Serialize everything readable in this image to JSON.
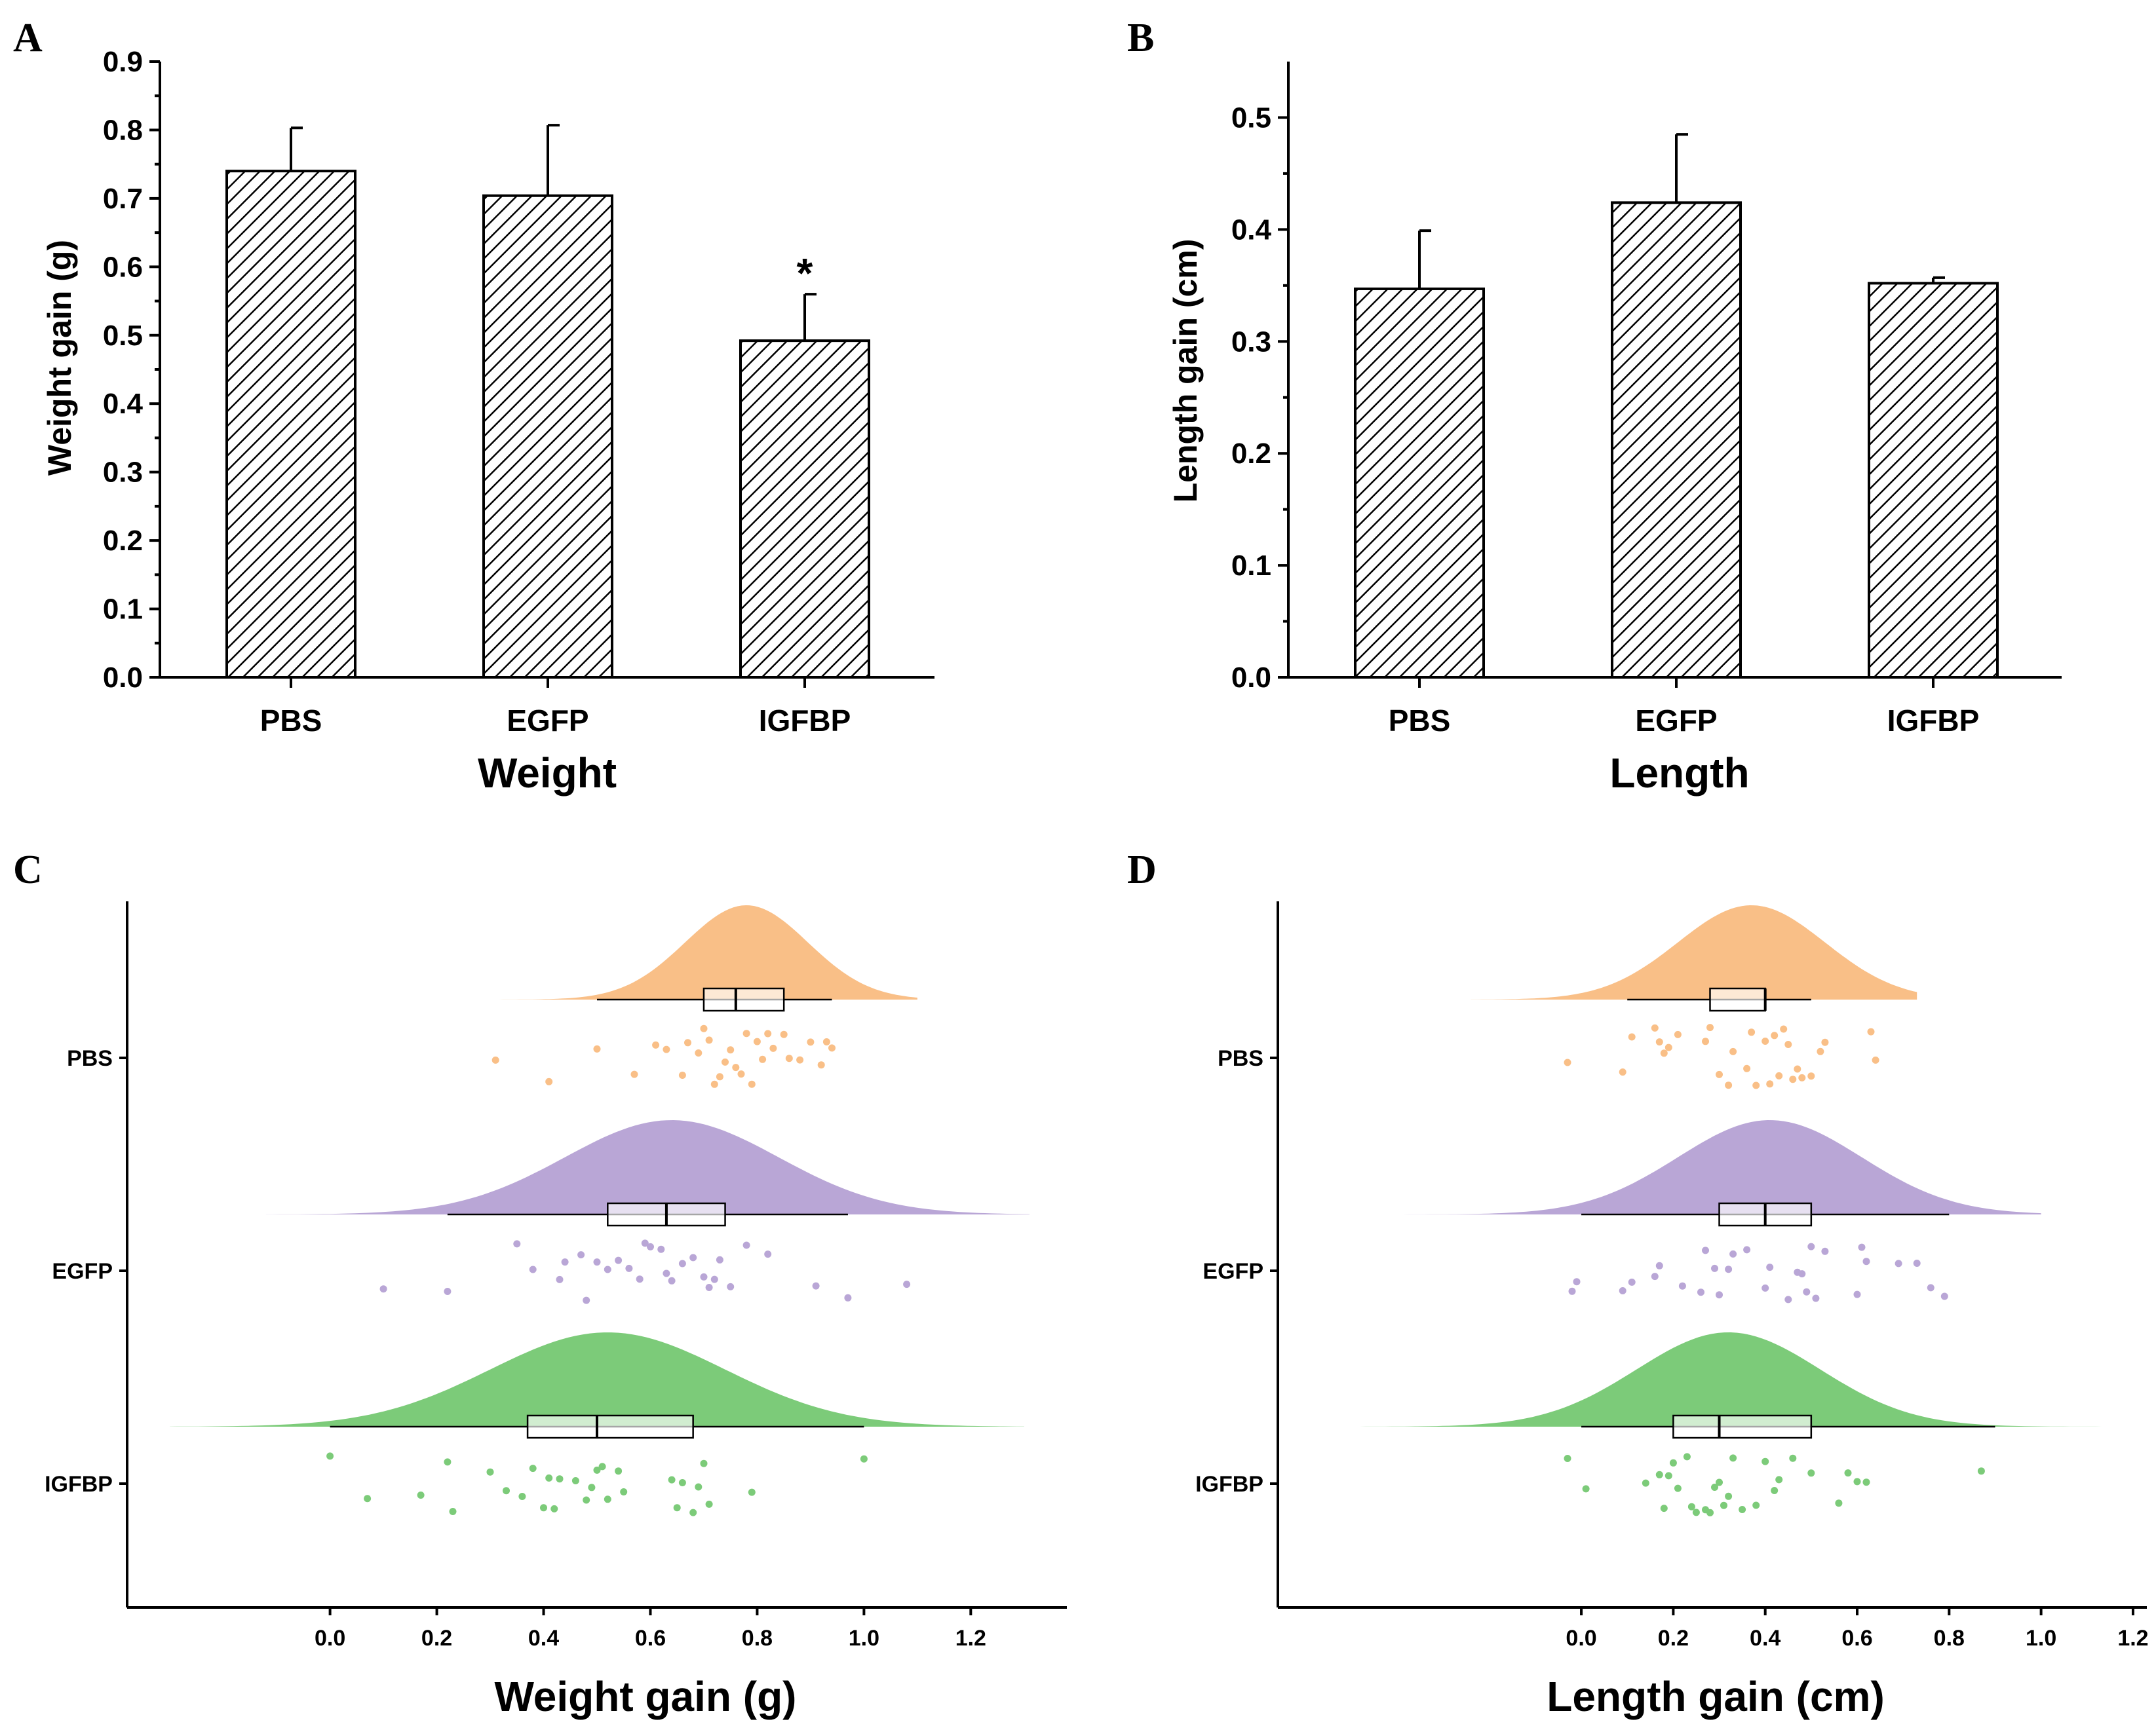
{
  "panels": {
    "A": {
      "letter": "A",
      "chart_data": {
        "type": "bar",
        "categories": [
          "PBS",
          "EGFP",
          "IGFBP"
        ],
        "values": [
          0.74,
          0.704,
          0.492
        ],
        "errors": [
          0.063,
          0.103,
          0.068
        ],
        "annotations": [
          "",
          "",
          "*"
        ],
        "title": "",
        "xlabel": "Weight",
        "ylabel": "Weight gain (g)",
        "ylim": [
          0,
          0.9
        ],
        "yticks": [
          "0.0",
          "0.1",
          "0.2",
          "0.3",
          "0.4",
          "0.5",
          "0.6",
          "0.7",
          "0.8",
          "0.9"
        ],
        "ytick_values": [
          0,
          0.1,
          0.2,
          0.3,
          0.4,
          0.5,
          0.6,
          0.7,
          0.8,
          0.9
        ]
      }
    },
    "B": {
      "letter": "B",
      "chart_data": {
        "type": "bar",
        "categories": [
          "PBS",
          "EGFP",
          "IGFBP"
        ],
        "values": [
          0.347,
          0.424,
          0.352
        ],
        "errors": [
          0.052,
          0.061,
          0.005
        ],
        "annotations": [
          "",
          "",
          ""
        ],
        "title": "",
        "xlabel": "Length",
        "ylabel": "Length gain (cm)",
        "ylim": [
          0,
          0.55
        ],
        "yticks": [
          "0.0",
          "0.1",
          "0.2",
          "0.3",
          "0.4",
          "0.5"
        ],
        "ytick_values": [
          0,
          0.1,
          0.2,
          0.3,
          0.4,
          0.5
        ]
      }
    },
    "C": {
      "letter": "C",
      "chart_data": {
        "type": "raincloud",
        "xlabel": "Weight gain (g)",
        "xlim": [
          -0.38,
          1.38
        ],
        "xticks": [
          "0.0",
          "0.2",
          "0.4",
          "0.6",
          "0.8",
          "1.0",
          "1.2"
        ],
        "xtick_values": [
          0,
          0.2,
          0.4,
          0.6,
          0.8,
          1.0,
          1.2
        ],
        "groups": [
          {
            "name": "PBS",
            "color": "#F9BF87",
            "density": {
              "mean": 0.78,
              "sd": 0.115,
              "min": 0.16,
              "max": 1.1
            },
            "box": {
              "whisker_low": 0.5,
              "q1": 0.7,
              "median": 0.76,
              "q3": 0.85,
              "whisker_high": 0.94
            },
            "points": [
              0.31,
              0.41,
              0.5,
              0.57,
              0.61,
              0.63,
              0.66,
              0.67,
              0.69,
              0.7,
              0.71,
              0.72,
              0.73,
              0.74,
              0.75,
              0.76,
              0.77,
              0.78,
              0.79,
              0.8,
              0.81,
              0.82,
              0.83,
              0.85,
              0.86,
              0.88,
              0.9,
              0.92,
              0.93,
              0.94
            ]
          },
          {
            "name": "EGFP",
            "color": "#B9A6D6",
            "density": {
              "mean": 0.64,
              "sd": 0.2,
              "min": -0.12,
              "max": 1.31
            },
            "box": {
              "whisker_low": 0.22,
              "q1": 0.52,
              "median": 0.63,
              "q3": 0.74,
              "whisker_high": 0.97
            },
            "points": [
              0.1,
              0.22,
              0.35,
              0.38,
              0.43,
              0.44,
              0.47,
              0.48,
              0.5,
              0.52,
              0.54,
              0.56,
              0.58,
              0.59,
              0.6,
              0.62,
              0.63,
              0.64,
              0.66,
              0.68,
              0.7,
              0.71,
              0.72,
              0.73,
              0.75,
              0.78,
              0.82,
              0.91,
              0.97,
              1.08
            ]
          },
          {
            "name": "IGFBP",
            "color": "#7CCB79",
            "density": {
              "mean": 0.52,
              "sd": 0.22,
              "min": -0.3,
              "max": 1.3
            },
            "box": {
              "whisker_low": 0.0,
              "q1": 0.37,
              "median": 0.5,
              "q3": 0.68,
              "whisker_high": 1.0
            },
            "points": [
              0.0,
              0.07,
              0.17,
              0.22,
              0.23,
              0.3,
              0.33,
              0.36,
              0.38,
              0.4,
              0.41,
              0.42,
              0.43,
              0.46,
              0.48,
              0.49,
              0.5,
              0.51,
              0.52,
              0.54,
              0.55,
              0.64,
              0.65,
              0.66,
              0.68,
              0.69,
              0.7,
              0.71,
              0.79,
              1.0
            ]
          }
        ]
      }
    },
    "D": {
      "letter": "D",
      "chart_data": {
        "type": "raincloud",
        "xlabel": "Length gain (cm)",
        "xlim": [
          -0.66,
          1.23
        ],
        "xticks": [
          "0.0",
          "0.2",
          "0.4",
          "0.6",
          "0.8",
          "1.0",
          "1.2"
        ],
        "xtick_values": [
          0,
          0.2,
          0.4,
          0.6,
          0.8,
          1.0,
          1.2
        ],
        "groups": [
          {
            "name": "PBS",
            "color": "#F9BF87",
            "density": {
              "mean": 0.37,
              "sd": 0.16,
              "min": -0.24,
              "max": 0.73
            },
            "box": {
              "whisker_low": 0.1,
              "q1": 0.28,
              "median": 0.4,
              "q3": 0.4,
              "whisker_high": 0.5
            },
            "points": [
              -0.03,
              0.09,
              0.11,
              0.16,
              0.17,
              0.18,
              0.19,
              0.21,
              0.27,
              0.28,
              0.3,
              0.32,
              0.33,
              0.36,
              0.37,
              0.38,
              0.4,
              0.41,
              0.42,
              0.43,
              0.44,
              0.45,
              0.46,
              0.47,
              0.48,
              0.5,
              0.52,
              0.53,
              0.63,
              0.64
            ]
          },
          {
            "name": "EGFP",
            "color": "#B9A6D6",
            "density": {
              "mean": 0.41,
              "sd": 0.2,
              "min": -0.4,
              "max": 1.0
            },
            "box": {
              "whisker_low": 0.0,
              "q1": 0.3,
              "median": 0.4,
              "q3": 0.5,
              "whisker_high": 0.8
            },
            "points": [
              -0.02,
              -0.01,
              0.09,
              0.11,
              0.16,
              0.17,
              0.22,
              0.26,
              0.27,
              0.29,
              0.3,
              0.32,
              0.33,
              0.36,
              0.4,
              0.41,
              0.45,
              0.47,
              0.48,
              0.49,
              0.5,
              0.51,
              0.53,
              0.6,
              0.61,
              0.62,
              0.69,
              0.73,
              0.76,
              0.79
            ]
          },
          {
            "name": "IGFBP",
            "color": "#7CCB79",
            "density": {
              "mean": 0.32,
              "sd": 0.2,
              "min": -0.51,
              "max": 1.16
            },
            "box": {
              "whisker_low": 0.0,
              "q1": 0.2,
              "median": 0.3,
              "q3": 0.5,
              "whisker_high": 0.9
            },
            "points": [
              -0.03,
              0.01,
              0.14,
              0.17,
              0.18,
              0.19,
              0.2,
              0.21,
              0.23,
              0.24,
              0.25,
              0.27,
              0.28,
              0.29,
              0.3,
              0.31,
              0.32,
              0.33,
              0.35,
              0.38,
              0.4,
              0.42,
              0.43,
              0.46,
              0.5,
              0.56,
              0.58,
              0.6,
              0.62,
              0.87
            ]
          }
        ]
      }
    }
  }
}
